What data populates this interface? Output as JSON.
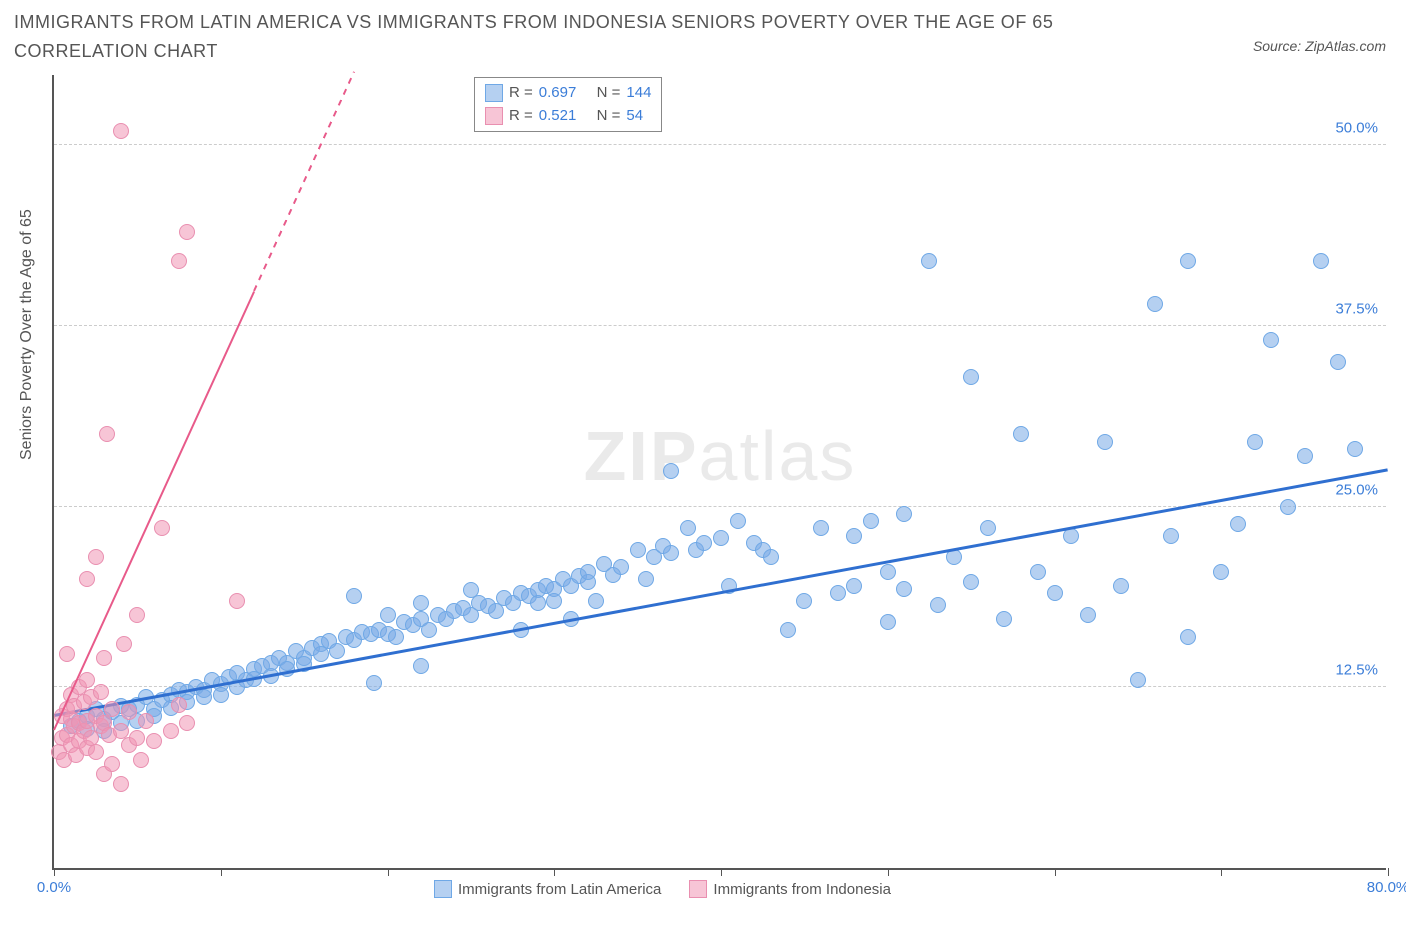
{
  "title": "IMMIGRANTS FROM LATIN AMERICA VS IMMIGRANTS FROM INDONESIA SENIORS POVERTY OVER THE AGE OF 65 CORRELATION CHART",
  "source_prefix": "Source: ",
  "source_name": "ZipAtlas.com",
  "watermark_bold": "ZIP",
  "watermark_rest": "atlas",
  "ylabel": "Seniors Poverty Over the Age of 65",
  "chart": {
    "type": "scatter",
    "xlim": [
      0,
      80
    ],
    "ylim": [
      0,
      55
    ],
    "x_ticks": [
      0,
      10,
      20,
      30,
      40,
      50,
      60,
      70,
      80
    ],
    "x_tick_labels": {
      "0": "0.0%",
      "80": "80.0%"
    },
    "y_ticks": [
      12.5,
      25.0,
      37.5,
      50.0
    ],
    "y_tick_labels": [
      "12.5%",
      "25.0%",
      "37.5%",
      "50.0%"
    ],
    "background_color": "#ffffff",
    "grid_color": "#cccccc",
    "axis_color": "#555555",
    "point_radius": 8,
    "series": [
      {
        "name": "Immigrants from Latin America",
        "color_fill": "rgba(120,170,230,0.55)",
        "color_stroke": "#6fa8e6",
        "trend_color": "#2f6fd0",
        "trend_width": 2.5,
        "trend": {
          "x1": 0,
          "y1": 10.5,
          "x2": 80,
          "y2": 27.5
        },
        "R": "0.697",
        "N": "144",
        "points": [
          [
            1,
            9.8
          ],
          [
            1.5,
            10.2
          ],
          [
            2,
            10.5
          ],
          [
            2,
            9.6
          ],
          [
            2.5,
            11
          ],
          [
            3,
            10.3
          ],
          [
            3,
            9.5
          ],
          [
            3.5,
            10.8
          ],
          [
            4,
            10
          ],
          [
            4,
            11.2
          ],
          [
            4.5,
            11
          ],
          [
            5,
            11.3
          ],
          [
            5,
            10.2
          ],
          [
            5.5,
            11.8
          ],
          [
            6,
            11
          ],
          [
            6,
            10.5
          ],
          [
            6.5,
            11.6
          ],
          [
            7,
            12
          ],
          [
            7,
            11.1
          ],
          [
            7.5,
            12.3
          ],
          [
            8,
            12.2
          ],
          [
            8,
            11.5
          ],
          [
            8.5,
            12.5
          ],
          [
            9,
            12.3
          ],
          [
            9,
            11.8
          ],
          [
            9.5,
            13
          ],
          [
            10,
            12.7
          ],
          [
            10,
            12
          ],
          [
            10.5,
            13.2
          ],
          [
            11,
            13.5
          ],
          [
            11,
            12.5
          ],
          [
            11.5,
            13
          ],
          [
            12,
            13.8
          ],
          [
            12,
            13.1
          ],
          [
            12.5,
            14
          ],
          [
            13,
            14.2
          ],
          [
            13,
            13.3
          ],
          [
            13.5,
            14.5
          ],
          [
            14,
            14.2
          ],
          [
            14,
            13.8
          ],
          [
            14.5,
            15
          ],
          [
            15,
            14.5
          ],
          [
            15,
            14.1
          ],
          [
            15.5,
            15.2
          ],
          [
            16,
            15.5
          ],
          [
            16,
            14.8
          ],
          [
            16.5,
            15.7
          ],
          [
            17,
            15
          ],
          [
            17.5,
            16
          ],
          [
            18,
            15.8
          ],
          [
            18,
            18.8
          ],
          [
            18.5,
            16.3
          ],
          [
            19,
            16.2
          ],
          [
            19.2,
            12.8
          ],
          [
            19.5,
            16.5
          ],
          [
            20,
            16.2
          ],
          [
            20,
            17.5
          ],
          [
            20.5,
            16
          ],
          [
            21,
            17
          ],
          [
            21.5,
            16.8
          ],
          [
            22,
            17.2
          ],
          [
            22,
            18.3
          ],
          [
            22,
            14
          ],
          [
            22.5,
            16.5
          ],
          [
            23,
            17.5
          ],
          [
            23.5,
            17.2
          ],
          [
            24,
            17.8
          ],
          [
            24.5,
            18
          ],
          [
            25,
            17.5
          ],
          [
            25,
            19.2
          ],
          [
            25.5,
            18.3
          ],
          [
            26,
            18.1
          ],
          [
            26.5,
            17.8
          ],
          [
            27,
            18.7
          ],
          [
            27.5,
            18.3
          ],
          [
            28,
            16.5
          ],
          [
            28,
            19
          ],
          [
            28.5,
            18.8
          ],
          [
            29,
            19.2
          ],
          [
            29,
            18.3
          ],
          [
            29.5,
            19.5
          ],
          [
            30,
            19.3
          ],
          [
            30,
            18.5
          ],
          [
            30.5,
            20
          ],
          [
            31,
            19.5
          ],
          [
            31,
            17.2
          ],
          [
            31.5,
            20.2
          ],
          [
            32,
            19.8
          ],
          [
            32,
            20.5
          ],
          [
            32.5,
            18.5
          ],
          [
            33,
            21
          ],
          [
            33.5,
            20.3
          ],
          [
            34,
            20.8
          ],
          [
            35,
            22
          ],
          [
            35.5,
            20
          ],
          [
            36,
            21.5
          ],
          [
            36.5,
            22.3
          ],
          [
            37,
            21.8
          ],
          [
            37,
            27.5
          ],
          [
            38,
            23.5
          ],
          [
            38.5,
            22
          ],
          [
            39,
            22.5
          ],
          [
            40,
            22.8
          ],
          [
            40.5,
            19.5
          ],
          [
            41,
            24
          ],
          [
            42,
            22.5
          ],
          [
            42.5,
            22
          ],
          [
            43,
            21.5
          ],
          [
            44,
            16.5
          ],
          [
            45,
            18.5
          ],
          [
            46,
            23.5
          ],
          [
            47,
            19
          ],
          [
            48,
            19.5
          ],
          [
            48,
            23
          ],
          [
            49,
            24
          ],
          [
            50,
            20.5
          ],
          [
            50,
            17
          ],
          [
            51,
            19.3
          ],
          [
            51,
            24.5
          ],
          [
            52.5,
            42
          ],
          [
            53,
            18.2
          ],
          [
            54,
            21.5
          ],
          [
            55,
            19.8
          ],
          [
            55,
            34
          ],
          [
            56,
            23.5
          ],
          [
            57,
            17.2
          ],
          [
            58,
            30
          ],
          [
            59,
            20.5
          ],
          [
            60,
            19
          ],
          [
            61,
            23
          ],
          [
            62,
            17.5
          ],
          [
            63,
            29.5
          ],
          [
            64,
            19.5
          ],
          [
            65,
            13
          ],
          [
            66,
            39
          ],
          [
            67,
            23
          ],
          [
            68,
            16
          ],
          [
            68,
            42
          ],
          [
            70,
            20.5
          ],
          [
            71,
            23.8
          ],
          [
            72,
            29.5
          ],
          [
            73,
            36.5
          ],
          [
            74,
            25
          ],
          [
            75,
            28.5
          ],
          [
            76,
            42
          ],
          [
            77,
            35
          ],
          [
            78,
            29
          ]
        ]
      },
      {
        "name": "Immigrants from Indonesia",
        "color_fill": "rgba(240,150,180,0.55)",
        "color_stroke": "#e98fb0",
        "trend_color": "#e85a8a",
        "trend_width": 2,
        "trend": {
          "x1": 0,
          "y1": 9.5,
          "x2": 18,
          "y2": 55
        },
        "trend_dash_after_x": 12,
        "R": "0.521",
        "N": "54",
        "points": [
          [
            0.3,
            8
          ],
          [
            0.5,
            9
          ],
          [
            0.5,
            10.5
          ],
          [
            0.6,
            7.5
          ],
          [
            0.8,
            11
          ],
          [
            0.8,
            9.2
          ],
          [
            1,
            10.3
          ],
          [
            1,
            8.5
          ],
          [
            1,
            12
          ],
          [
            1.2,
            9.8
          ],
          [
            1.2,
            11.2
          ],
          [
            1.3,
            7.8
          ],
          [
            1.5,
            10
          ],
          [
            1.5,
            8.8
          ],
          [
            1.5,
            12.5
          ],
          [
            1.8,
            9.5
          ],
          [
            1.8,
            11.5
          ],
          [
            2,
            10.2
          ],
          [
            2,
            8.3
          ],
          [
            2,
            13
          ],
          [
            2.2,
            9
          ],
          [
            2.2,
            11.8
          ],
          [
            2.5,
            10.5
          ],
          [
            2.5,
            8
          ],
          [
            2.8,
            9.8
          ],
          [
            2.8,
            12.2
          ],
          [
            3,
            10
          ],
          [
            3,
            6.5
          ],
          [
            3,
            14.5
          ],
          [
            3.3,
            9.2
          ],
          [
            3.5,
            11
          ],
          [
            3.5,
            7.2
          ],
          [
            4,
            9.5
          ],
          [
            4,
            5.8
          ],
          [
            4.2,
            15.5
          ],
          [
            4.5,
            8.5
          ],
          [
            4.5,
            10.8
          ],
          [
            5,
            9
          ],
          [
            5,
            17.5
          ],
          [
            5.2,
            7.5
          ],
          [
            5.5,
            10.2
          ],
          [
            6,
            8.8
          ],
          [
            6.5,
            23.5
          ],
          [
            7,
            9.5
          ],
          [
            7.5,
            11.3
          ],
          [
            8,
            10
          ],
          [
            2,
            20
          ],
          [
            2.5,
            21.5
          ],
          [
            3.2,
            30
          ],
          [
            0.8,
            14.8
          ],
          [
            4,
            51
          ],
          [
            7.5,
            42
          ],
          [
            8,
            44
          ],
          [
            11,
            18.5
          ]
        ]
      }
    ]
  },
  "bottom_legend": [
    {
      "label": "Immigrants from Latin America",
      "fill": "rgba(120,170,230,0.55)",
      "stroke": "#6fa8e6"
    },
    {
      "label": "Immigrants from Indonesia",
      "fill": "rgba(240,150,180,0.55)",
      "stroke": "#e98fb0"
    }
  ]
}
